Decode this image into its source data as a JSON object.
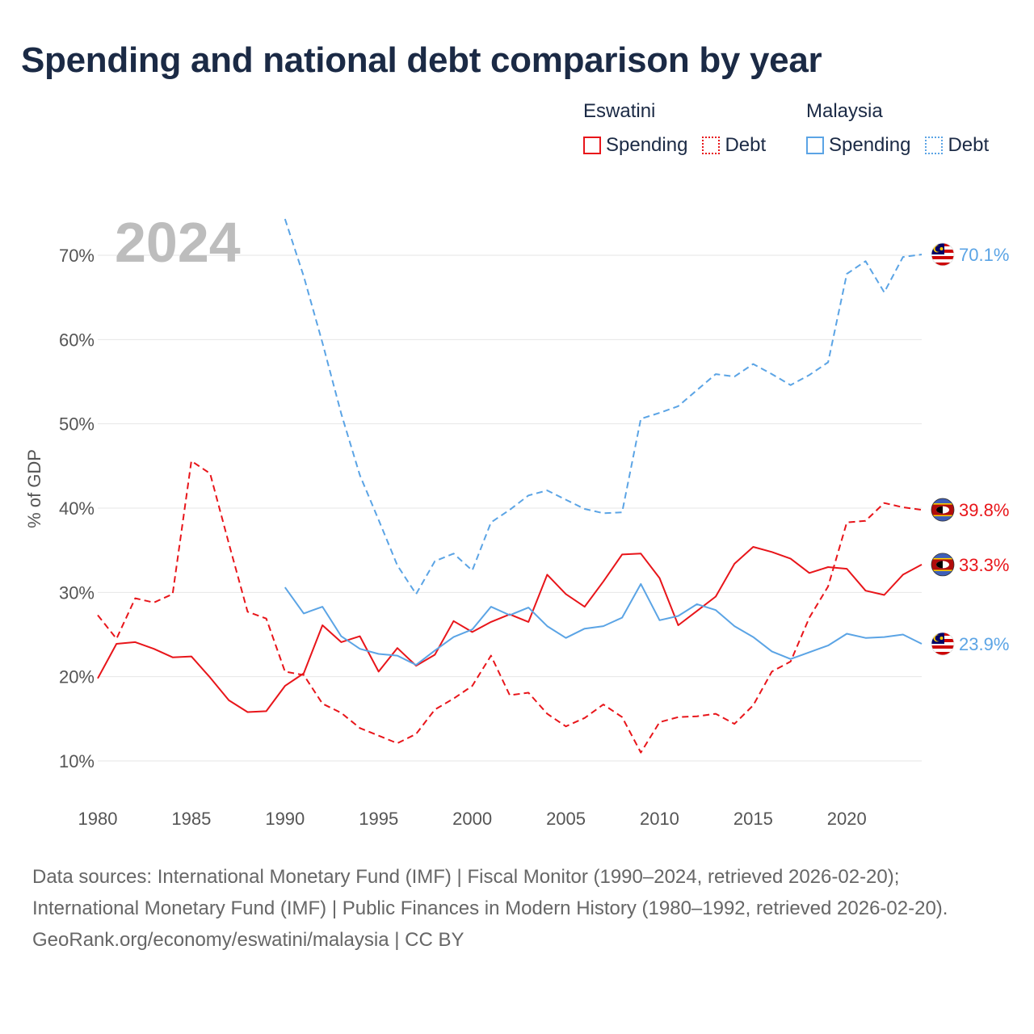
{
  "title": "Spending and national debt comparison by year",
  "legend": {
    "groups": [
      {
        "name": "Eswatini",
        "color": "#e8151a",
        "items": [
          {
            "label": "Spending",
            "style": "solid"
          },
          {
            "label": "Debt",
            "style": "dotted"
          }
        ]
      },
      {
        "name": "Malaysia",
        "color": "#5ba4e5",
        "items": [
          {
            "label": "Spending",
            "style": "solid"
          },
          {
            "label": "Debt",
            "style": "dotted"
          }
        ]
      }
    ]
  },
  "footer": {
    "sources": "Data sources: International Monetary Fund (IMF) | Fiscal Monitor (1990–2024, retrieved 2026-02-20); International Monetary Fund (IMF) | Public Finances in Modern History (1980–1992, retrieved 2026-02-20).",
    "credit": "GeoRank.org/economy/eswatini/malaysia | CC BY"
  },
  "chart_data": {
    "type": "line",
    "title": "Spending and national debt comparison by year",
    "year_label": "2024",
    "ylabel": "% of GDP",
    "xlabel": "",
    "xlim": [
      1980,
      2024
    ],
    "ylim": [
      10,
      70
    ],
    "x_ticks": [
      1980,
      1985,
      1990,
      1995,
      2000,
      2005,
      2010,
      2015,
      2020
    ],
    "x_tick_labels": [
      "1980",
      "1985",
      "1990",
      "1995",
      "2000",
      "2005",
      "2010",
      "2015",
      "2020"
    ],
    "y_ticks": [
      10,
      20,
      30,
      40,
      50,
      60,
      70
    ],
    "y_tick_labels": [
      "10%",
      "20%",
      "30%",
      "40%",
      "50%",
      "60%",
      "70%"
    ],
    "grid": true,
    "series": [
      {
        "name": "Eswatini Spending",
        "country": "Eswatini",
        "metric": "Spending",
        "dash": "solid",
        "color": "#e8151a",
        "end_label": "33.3%",
        "flag": "eswatini",
        "x": [
          1980,
          1981,
          1982,
          1983,
          1984,
          1985,
          1986,
          1987,
          1988,
          1989,
          1990,
          1991,
          1992,
          1993,
          1994,
          1995,
          1996,
          1997,
          1998,
          1999,
          2000,
          2001,
          2002,
          2003,
          2004,
          2005,
          2006,
          2007,
          2008,
          2009,
          2010,
          2011,
          2012,
          2013,
          2014,
          2015,
          2016,
          2017,
          2018,
          2019,
          2020,
          2021,
          2022,
          2023,
          2024
        ],
        "y": [
          19.8,
          23.9,
          24.1,
          23.3,
          22.3,
          22.4,
          19.9,
          17.2,
          15.8,
          15.9,
          18.9,
          20.4,
          26.1,
          24.1,
          24.8,
          20.6,
          23.4,
          21.3,
          22.6,
          26.6,
          25.3,
          26.5,
          27.4,
          26.5,
          32.1,
          29.8,
          28.3,
          31.3,
          34.5,
          34.6,
          31.7,
          26.1,
          27.8,
          29.5,
          33.4,
          35.4,
          34.8,
          34.0,
          32.3,
          33.0,
          32.8,
          30.2,
          29.7,
          32.1,
          33.3
        ]
      },
      {
        "name": "Eswatini Debt",
        "country": "Eswatini",
        "metric": "Debt",
        "dash": "dashed",
        "color": "#e8151a",
        "end_label": "39.8%",
        "flag": "eswatini",
        "x": [
          1980,
          1981,
          1982,
          1983,
          1984,
          1985,
          1986,
          1987,
          1988,
          1989,
          1990,
          1991,
          1992,
          1993,
          1994,
          1995,
          1996,
          1997,
          1998,
          1999,
          2000,
          2001,
          2002,
          2003,
          2004,
          2005,
          2006,
          2007,
          2008,
          2009,
          2010,
          2011,
          2012,
          2013,
          2014,
          2015,
          2016,
          2017,
          2018,
          2019,
          2020,
          2021,
          2022,
          2023,
          2024
        ],
        "y": [
          27.3,
          24.5,
          29.3,
          28.8,
          29.8,
          45.6,
          44.1,
          35.8,
          27.7,
          26.9,
          20.6,
          20.2,
          16.8,
          15.7,
          13.9,
          13.0,
          12.1,
          13.2,
          16.1,
          17.4,
          18.9,
          22.5,
          17.8,
          18.1,
          15.6,
          14.1,
          15.1,
          16.7,
          15.2,
          11.0,
          14.6,
          15.2,
          15.3,
          15.6,
          14.4,
          16.6,
          20.6,
          21.8,
          27.0,
          30.7,
          38.3,
          38.5,
          40.6,
          40.1,
          39.8
        ]
      },
      {
        "name": "Malaysia Spending",
        "country": "Malaysia",
        "metric": "Spending",
        "dash": "solid",
        "color": "#5ba4e5",
        "end_label": "23.9%",
        "flag": "malaysia",
        "x": [
          1990,
          1991,
          1992,
          1993,
          1994,
          1995,
          1996,
          1997,
          1998,
          1999,
          2000,
          2001,
          2002,
          2003,
          2004,
          2005,
          2006,
          2007,
          2008,
          2009,
          2010,
          2011,
          2012,
          2013,
          2014,
          2015,
          2016,
          2017,
          2018,
          2019,
          2020,
          2021,
          2022,
          2023,
          2024
        ],
        "y": [
          30.6,
          27.5,
          28.3,
          24.8,
          23.3,
          22.7,
          22.5,
          21.4,
          23.1,
          24.7,
          25.6,
          28.3,
          27.3,
          28.2,
          26.0,
          24.6,
          25.7,
          26.0,
          27.0,
          31.0,
          26.7,
          27.2,
          28.6,
          27.9,
          26.0,
          24.7,
          23.0,
          22.1,
          22.9,
          23.7,
          25.1,
          24.6,
          24.7,
          25.0,
          23.9
        ]
      },
      {
        "name": "Malaysia Debt",
        "country": "Malaysia",
        "metric": "Debt",
        "dash": "dashed",
        "color": "#5ba4e5",
        "end_label": "70.1%",
        "flag": "malaysia",
        "x": [
          1990,
          1991,
          1992,
          1993,
          1994,
          1995,
          1996,
          1997,
          1998,
          1999,
          2000,
          2001,
          2002,
          2003,
          2004,
          2005,
          2006,
          2007,
          2008,
          2009,
          2010,
          2011,
          2012,
          2013,
          2014,
          2015,
          2016,
          2017,
          2018,
          2019,
          2020,
          2021,
          2022,
          2023,
          2024
        ],
        "y": [
          74.3,
          67.5,
          59.6,
          51.2,
          43.9,
          38.6,
          33.2,
          29.8,
          33.7,
          34.6,
          32.6,
          38.3,
          39.8,
          41.5,
          42.1,
          41.0,
          39.9,
          39.4,
          39.5,
          50.6,
          51.3,
          52.1,
          54.0,
          55.9,
          55.6,
          57.1,
          55.9,
          54.6,
          55.8,
          57.3,
          67.8,
          69.3,
          65.6,
          69.8,
          70.1
        ]
      }
    ]
  }
}
